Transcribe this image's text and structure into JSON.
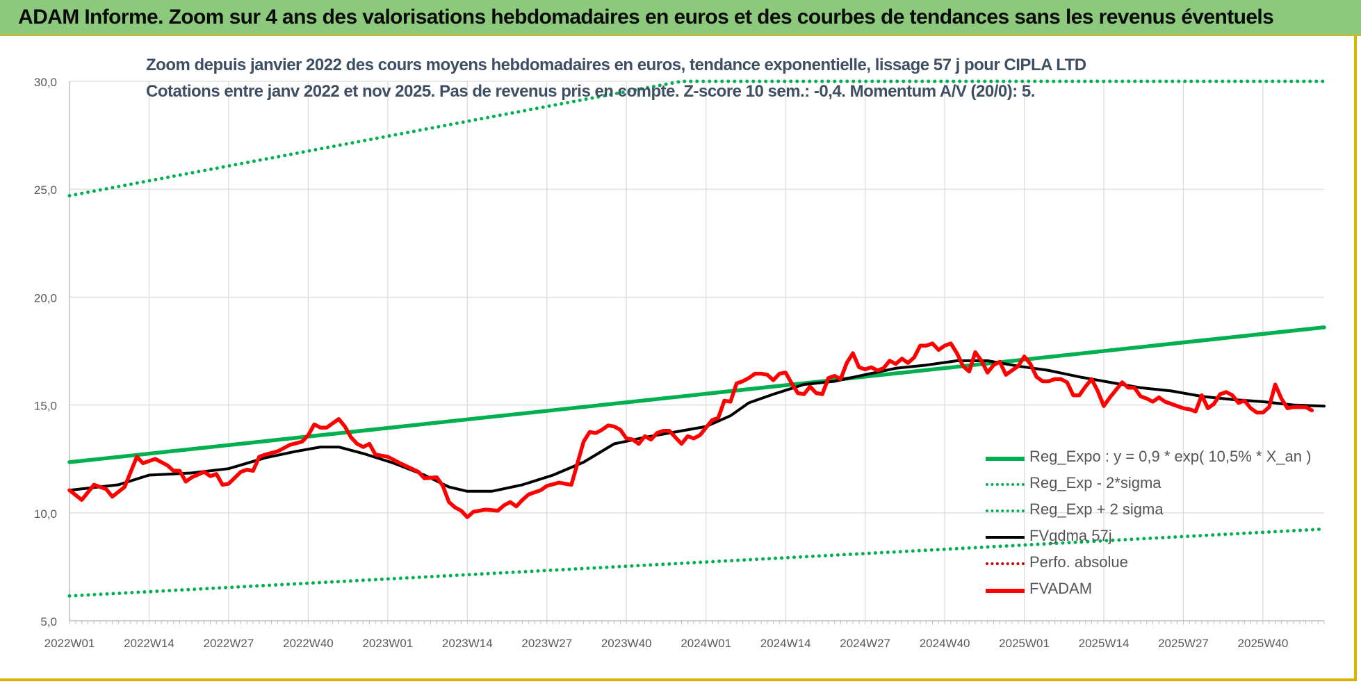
{
  "banner_title": "ADAM Informe. Zoom sur 4 ans des valorisations hebdomadaires en euros et des courbes de tendances sans les revenus éventuels",
  "chart_data": {
    "type": "line",
    "title_line1": "Zoom depuis janvier 2022 des cours moyens hebdomadaires en euros, tendance exponentielle, lissage 57 j pour CIPLA LTD",
    "title_line2": "Cotations entre janv 2022 et nov 2025. Pas de revenus pris en compte. Z-score 10 sem.: -0,4. Momentum A/V (20/0): 5.",
    "ylim": [
      5,
      30
    ],
    "y_ticks": [
      "5,0",
      "10,0",
      "15,0",
      "20,0",
      "25,0",
      "30,0"
    ],
    "x_ticks": [
      "2022W01",
      "2022W14",
      "2022W27",
      "2022W40",
      "2023W01",
      "2023W14",
      "2023W27",
      "2023W40",
      "2024W01",
      "2024W14",
      "2024W27",
      "2024W40",
      "2025W01",
      "2025W14",
      "2025W27",
      "2025W40"
    ],
    "x_label_interval_weeks": 13,
    "n_weeks": 206,
    "grid": true,
    "legend_position": "right",
    "series": [
      {
        "name": "Reg_Expo : y = 0,9 * exp( 10,5% *  X_an )",
        "color": "#00b050",
        "style": "solid",
        "points": [
          [
            0,
            12.35
          ],
          [
            205,
            18.6
          ]
        ]
      },
      {
        "name": "Reg_Exp - 2*sigma",
        "color": "#00b050",
        "style": "dotted",
        "points": [
          [
            0,
            6.15
          ],
          [
            205,
            9.25
          ]
        ]
      },
      {
        "name": "Reg_Exp + 2 sigma",
        "color": "#00b050",
        "style": "dotted",
        "points": [
          [
            0,
            24.7
          ],
          [
            100,
            30
          ],
          [
            205,
            30
          ]
        ]
      },
      {
        "name": "FVgdma  57j",
        "color": "#000000",
        "style": "solid",
        "points": [
          [
            0,
            11.05
          ],
          [
            8,
            11.3
          ],
          [
            13,
            11.75
          ],
          [
            20,
            11.85
          ],
          [
            26,
            12.05
          ],
          [
            32,
            12.55
          ],
          [
            37,
            12.85
          ],
          [
            41,
            13.05
          ],
          [
            44,
            13.05
          ],
          [
            48,
            12.75
          ],
          [
            53,
            12.3
          ],
          [
            58,
            11.75
          ],
          [
            62,
            11.2
          ],
          [
            65,
            11.0
          ],
          [
            69,
            11.0
          ],
          [
            74,
            11.3
          ],
          [
            79,
            11.75
          ],
          [
            84,
            12.35
          ],
          [
            89,
            13.2
          ],
          [
            94,
            13.5
          ],
          [
            99,
            13.75
          ],
          [
            104,
            14.0
          ],
          [
            108,
            14.5
          ],
          [
            111,
            15.1
          ],
          [
            115,
            15.5
          ],
          [
            120,
            15.95
          ],
          [
            125,
            16.1
          ],
          [
            130,
            16.4
          ],
          [
            135,
            16.7
          ],
          [
            140,
            16.85
          ],
          [
            145,
            17.05
          ],
          [
            150,
            17.05
          ],
          [
            155,
            16.8
          ],
          [
            160,
            16.6
          ],
          [
            165,
            16.3
          ],
          [
            170,
            16.05
          ],
          [
            175,
            15.8
          ],
          [
            180,
            15.65
          ],
          [
            185,
            15.4
          ],
          [
            190,
            15.25
          ],
          [
            195,
            15.15
          ],
          [
            200,
            15.0
          ],
          [
            205,
            14.95
          ]
        ]
      },
      {
        "name": "Perfo. absolue",
        "color": "#c00000",
        "style": "dotted",
        "points": []
      },
      {
        "name": "FVADAM",
        "color": "#ff0000",
        "style": "solid",
        "points": [
          [
            0,
            11.05
          ],
          [
            2,
            10.6
          ],
          [
            4,
            11.3
          ],
          [
            6,
            11.1
          ],
          [
            7,
            10.75
          ],
          [
            9,
            11.2
          ],
          [
            11,
            12.6
          ],
          [
            12,
            12.3
          ],
          [
            14,
            12.5
          ],
          [
            16,
            12.2
          ],
          [
            17,
            11.95
          ],
          [
            18,
            11.95
          ],
          [
            19,
            11.45
          ],
          [
            20,
            11.65
          ],
          [
            22,
            11.9
          ],
          [
            23,
            11.7
          ],
          [
            24,
            11.8
          ],
          [
            25,
            11.3
          ],
          [
            26,
            11.35
          ],
          [
            28,
            11.9
          ],
          [
            29,
            12.0
          ],
          [
            30,
            11.95
          ],
          [
            31,
            12.6
          ],
          [
            32,
            12.7
          ],
          [
            34,
            12.85
          ],
          [
            36,
            13.15
          ],
          [
            38,
            13.3
          ],
          [
            39,
            13.6
          ],
          [
            40,
            14.1
          ],
          [
            41,
            13.95
          ],
          [
            42,
            13.95
          ],
          [
            44,
            14.35
          ],
          [
            45,
            14.0
          ],
          [
            46,
            13.5
          ],
          [
            47,
            13.2
          ],
          [
            48,
            13.05
          ],
          [
            49,
            13.2
          ],
          [
            50,
            12.7
          ],
          [
            52,
            12.6
          ],
          [
            54,
            12.3
          ],
          [
            57,
            11.9
          ],
          [
            58,
            11.6
          ],
          [
            60,
            11.65
          ],
          [
            61,
            11.25
          ],
          [
            62,
            10.5
          ],
          [
            63,
            10.25
          ],
          [
            64,
            10.1
          ],
          [
            65,
            9.8
          ],
          [
            66,
            10.05
          ],
          [
            67,
            10.1
          ],
          [
            68,
            10.15
          ],
          [
            70,
            10.1
          ],
          [
            71,
            10.35
          ],
          [
            72,
            10.5
          ],
          [
            73,
            10.3
          ],
          [
            74,
            10.6
          ],
          [
            75,
            10.85
          ],
          [
            77,
            11.05
          ],
          [
            78,
            11.25
          ],
          [
            80,
            11.4
          ],
          [
            81,
            11.35
          ],
          [
            82,
            11.3
          ],
          [
            83,
            12.3
          ],
          [
            84,
            13.3
          ],
          [
            85,
            13.75
          ],
          [
            86,
            13.7
          ],
          [
            87,
            13.85
          ],
          [
            88,
            14.05
          ],
          [
            89,
            14.0
          ],
          [
            90,
            13.85
          ],
          [
            91,
            13.45
          ],
          [
            92,
            13.4
          ],
          [
            93,
            13.2
          ],
          [
            94,
            13.55
          ],
          [
            95,
            13.4
          ],
          [
            96,
            13.7
          ],
          [
            97,
            13.8
          ],
          [
            98,
            13.8
          ],
          [
            99,
            13.5
          ],
          [
            100,
            13.2
          ],
          [
            101,
            13.55
          ],
          [
            102,
            13.45
          ],
          [
            103,
            13.6
          ],
          [
            104,
            13.95
          ],
          [
            105,
            14.3
          ],
          [
            106,
            14.4
          ],
          [
            107,
            15.2
          ],
          [
            108,
            15.15
          ],
          [
            109,
            16.0
          ],
          [
            110,
            16.1
          ],
          [
            111,
            16.25
          ],
          [
            112,
            16.45
          ],
          [
            113,
            16.45
          ],
          [
            114,
            16.4
          ],
          [
            115,
            16.15
          ],
          [
            116,
            16.45
          ],
          [
            117,
            16.5
          ],
          [
            118,
            16.0
          ],
          [
            119,
            15.55
          ],
          [
            120,
            15.5
          ],
          [
            121,
            15.85
          ],
          [
            122,
            15.55
          ],
          [
            123,
            15.5
          ],
          [
            124,
            16.25
          ],
          [
            125,
            16.35
          ],
          [
            126,
            16.2
          ],
          [
            127,
            16.95
          ],
          [
            128,
            17.4
          ],
          [
            129,
            16.75
          ],
          [
            130,
            16.65
          ],
          [
            131,
            16.75
          ],
          [
            132,
            16.6
          ],
          [
            133,
            16.7
          ],
          [
            134,
            17.05
          ],
          [
            135,
            16.9
          ],
          [
            136,
            17.15
          ],
          [
            137,
            16.95
          ],
          [
            138,
            17.2
          ],
          [
            139,
            17.75
          ],
          [
            140,
            17.75
          ],
          [
            141,
            17.85
          ],
          [
            142,
            17.55
          ],
          [
            143,
            17.75
          ],
          [
            144,
            17.85
          ],
          [
            145,
            17.4
          ],
          [
            146,
            16.8
          ],
          [
            147,
            16.55
          ],
          [
            148,
            17.45
          ],
          [
            149,
            17.05
          ],
          [
            150,
            16.5
          ],
          [
            151,
            16.85
          ],
          [
            152,
            17.0
          ],
          [
            153,
            16.4
          ],
          [
            154,
            16.6
          ],
          [
            155,
            16.8
          ],
          [
            156,
            17.25
          ],
          [
            157,
            16.9
          ],
          [
            158,
            16.3
          ],
          [
            159,
            16.1
          ],
          [
            160,
            16.1
          ],
          [
            161,
            16.2
          ],
          [
            162,
            16.2
          ],
          [
            163,
            16.05
          ],
          [
            164,
            15.45
          ],
          [
            165,
            15.45
          ],
          [
            166,
            15.85
          ],
          [
            167,
            16.2
          ],
          [
            168,
            15.65
          ],
          [
            169,
            14.95
          ],
          [
            170,
            15.35
          ],
          [
            171,
            15.7
          ],
          [
            172,
            16.05
          ],
          [
            173,
            15.8
          ],
          [
            174,
            15.8
          ],
          [
            175,
            15.4
          ],
          [
            176,
            15.3
          ],
          [
            177,
            15.15
          ],
          [
            178,
            15.35
          ],
          [
            179,
            15.15
          ],
          [
            180,
            15.05
          ],
          [
            181,
            14.95
          ],
          [
            182,
            14.85
          ],
          [
            183,
            14.8
          ],
          [
            184,
            14.7
          ],
          [
            185,
            15.45
          ],
          [
            186,
            14.85
          ],
          [
            187,
            15.05
          ],
          [
            188,
            15.5
          ],
          [
            189,
            15.6
          ],
          [
            190,
            15.45
          ],
          [
            191,
            15.1
          ],
          [
            192,
            15.2
          ],
          [
            193,
            14.85
          ],
          [
            194,
            14.65
          ],
          [
            195,
            14.65
          ],
          [
            196,
            14.9
          ],
          [
            197,
            15.95
          ],
          [
            198,
            15.3
          ],
          [
            199,
            14.85
          ],
          [
            200,
            14.9
          ],
          [
            201,
            14.9
          ],
          [
            202,
            14.9
          ],
          [
            203,
            14.75
          ]
        ]
      }
    ]
  }
}
